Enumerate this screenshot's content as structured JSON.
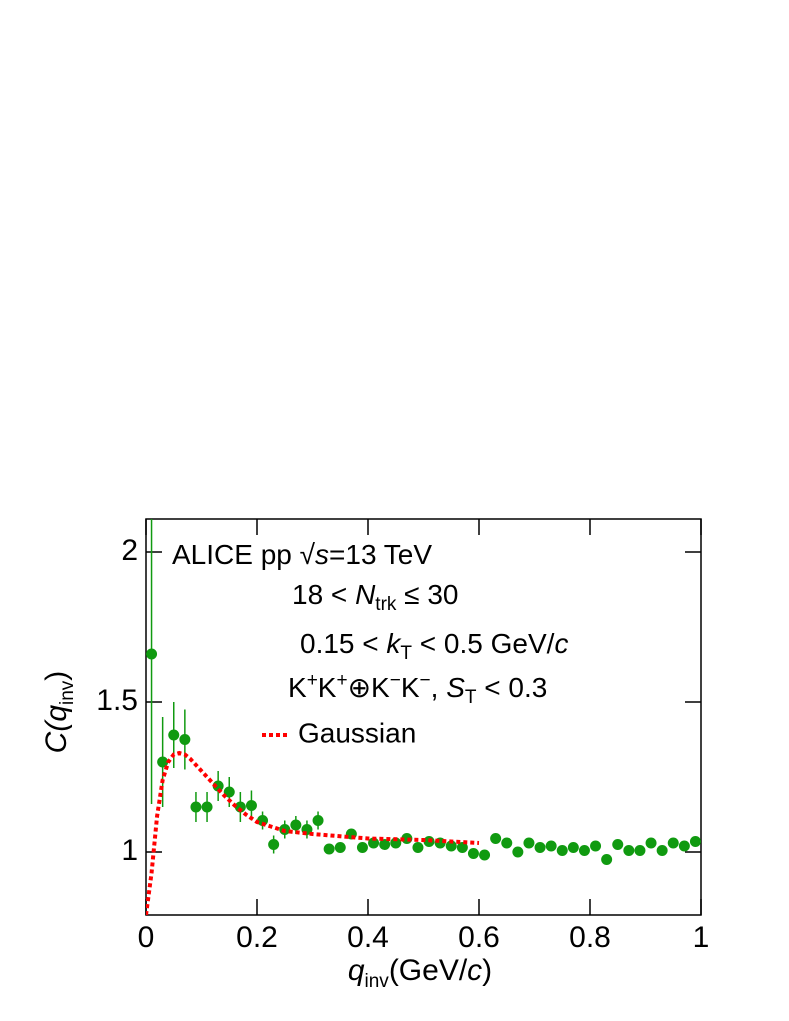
{
  "chart_data": {
    "type": "scatter",
    "xlim": [
      0,
      1
    ],
    "ylim": [
      0.79,
      2.11
    ],
    "xticks": [
      0,
      0.2,
      0.4,
      0.6,
      0.8,
      1
    ],
    "yticks": [
      1,
      1.5,
      2
    ],
    "x_label": [
      "q",
      "inv",
      "(GeV/",
      "c",
      ")"
    ],
    "y_label": [
      "C(",
      "q",
      "inv",
      ")"
    ],
    "annotations": [
      [
        "ALICE  pp  ",
        "√",
        "s",
        "=13 TeV"
      ],
      [
        "18 < ",
        "N",
        "trk",
        " ≤ 30"
      ],
      [
        "0.15 < ",
        "k",
        "T",
        " < 0.5  GeV/",
        "c"
      ],
      [
        "K",
        "+",
        "K",
        "+",
        "⊕K",
        "−",
        "K",
        "−",
        ", ",
        "S",
        "T",
        " < 0.3"
      ]
    ],
    "series": [
      {
        "color": "#109a10",
        "x": [
          0.01,
          0.03,
          0.05,
          0.07,
          0.09,
          0.11,
          0.13,
          0.15,
          0.17,
          0.19,
          0.21,
          0.23,
          0.25,
          0.27,
          0.29,
          0.31,
          0.33,
          0.35,
          0.37,
          0.39,
          0.41,
          0.43,
          0.45,
          0.47,
          0.49,
          0.51,
          0.53,
          0.55,
          0.57,
          0.59,
          0.61,
          0.63,
          0.65,
          0.67,
          0.69,
          0.71,
          0.73,
          0.75,
          0.77,
          0.79,
          0.81,
          0.83,
          0.85,
          0.87,
          0.89,
          0.91,
          0.93,
          0.95,
          0.97,
          0.99
        ],
        "values": [
          1.66,
          1.3,
          1.39,
          1.375,
          1.15,
          1.15,
          1.22,
          1.2,
          1.15,
          1.155,
          1.105,
          1.025,
          1.075,
          1.09,
          1.075,
          1.105,
          1.01,
          1.015,
          1.06,
          1.015,
          1.03,
          1.025,
          1.03,
          1.045,
          1.015,
          1.035,
          1.03,
          1.02,
          1.015,
          0.995,
          0.99,
          1.045,
          1.03,
          1.0,
          1.03,
          1.015,
          1.02,
          1.005,
          1.015,
          1.005,
          1.02,
          0.975,
          1.025,
          1.005,
          1.005,
          1.03,
          1.005,
          1.03,
          1.02,
          1.035
        ],
        "errors": [
          0.5,
          0.15,
          0.11,
          0.1,
          0.05,
          0.05,
          0.05,
          0.05,
          0.05,
          0.05,
          0.03,
          0.03,
          0.03,
          0.03,
          0.03,
          0.03,
          0.015,
          0.015,
          0.015,
          0.015,
          0.01,
          0.01,
          0.01,
          0.01,
          0.01,
          0.01,
          0.01,
          0.01,
          0.01,
          0.01,
          0.01,
          0.01,
          0.01,
          0.01,
          0.01,
          0.01,
          0.01,
          0.01,
          0.01,
          0.01,
          0.01,
          0.01,
          0.01,
          0.01,
          0.01,
          0.01,
          0.01,
          0.01,
          0.01,
          0.01
        ]
      },
      {
        "name": "Gaussian",
        "type": "line",
        "color": "#ff0000",
        "x": [
          0,
          0.01,
          0.02,
          0.03,
          0.04,
          0.05,
          0.06,
          0.07,
          0.08,
          0.1,
          0.12,
          0.14,
          0.16,
          0.18,
          0.2,
          0.25,
          0.3,
          0.4,
          0.5,
          0.6
        ],
        "values": [
          0.79,
          0.93,
          1.12,
          1.24,
          1.3,
          1.325,
          1.33,
          1.325,
          1.31,
          1.27,
          1.23,
          1.19,
          1.155,
          1.125,
          1.1,
          1.07,
          1.06,
          1.045,
          1.04,
          1.03
        ]
      }
    ]
  }
}
